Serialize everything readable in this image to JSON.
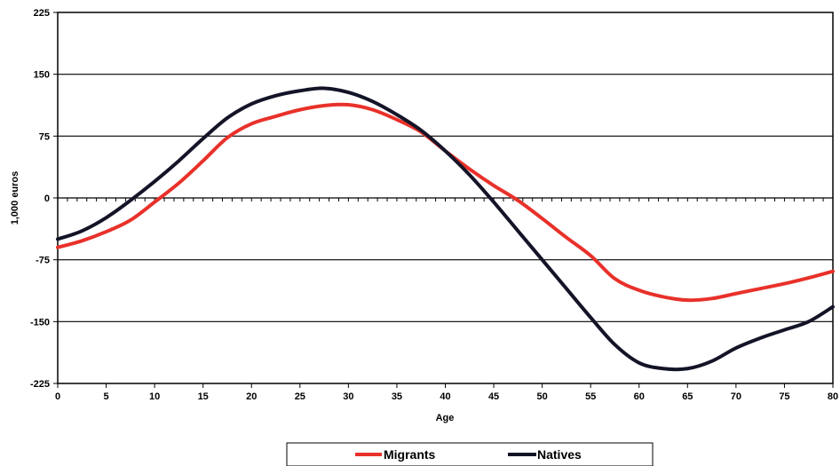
{
  "chart_data": {
    "type": "line",
    "title": "",
    "xlabel": "Age",
    "ylabel": "1,000 euros",
    "xlim": [
      0,
      80
    ],
    "ylim": [
      -225,
      225
    ],
    "x_ticks": [
      0,
      5,
      10,
      15,
      20,
      25,
      30,
      35,
      40,
      45,
      50,
      55,
      60,
      65,
      70,
      75,
      80
    ],
    "y_ticks": [
      225,
      150,
      75,
      0,
      -75,
      -150,
      -225
    ],
    "grid": "horizontal",
    "legend_position": "bottom",
    "colors": {
      "Migrants": "#e8312a",
      "Natives": "#141428"
    },
    "series": [
      {
        "name": "Migrants",
        "x": [
          0,
          2.5,
          5,
          7.5,
          10,
          12.5,
          15,
          17.5,
          20,
          22.5,
          25,
          27.5,
          30,
          32.5,
          35,
          37.5,
          40,
          42.5,
          45,
          47.5,
          50,
          52.5,
          55,
          57.5,
          60,
          62.5,
          65,
          67.5,
          70,
          72.5,
          75,
          77.5,
          80
        ],
        "y": [
          -60,
          -52,
          -41,
          -27,
          -5,
          18,
          45,
          73,
          90,
          99,
          107,
          112,
          113,
          107,
          95,
          80,
          57,
          35,
          15,
          -3,
          -25,
          -48,
          -70,
          -98,
          -112,
          -120,
          -124,
          -122,
          -116,
          -110,
          -104,
          -97,
          -89
        ]
      },
      {
        "name": "Natives",
        "x": [
          0,
          2.5,
          5,
          7.5,
          10,
          12.5,
          15,
          17.5,
          20,
          22.5,
          25,
          27.5,
          30,
          32.5,
          35,
          37.5,
          40,
          42.5,
          45,
          47.5,
          50,
          52.5,
          55,
          57.5,
          60,
          62.5,
          65,
          67.5,
          70,
          72.5,
          75,
          77.5,
          80
        ],
        "y": [
          -50,
          -40,
          -24,
          -3,
          20,
          45,
          72,
          97,
          114,
          124,
          130,
          133,
          128,
          117,
          101,
          82,
          57,
          28,
          -5,
          -40,
          -75,
          -110,
          -145,
          -178,
          -200,
          -207,
          -207,
          -198,
          -182,
          -170,
          -160,
          -150,
          -132
        ]
      }
    ]
  }
}
